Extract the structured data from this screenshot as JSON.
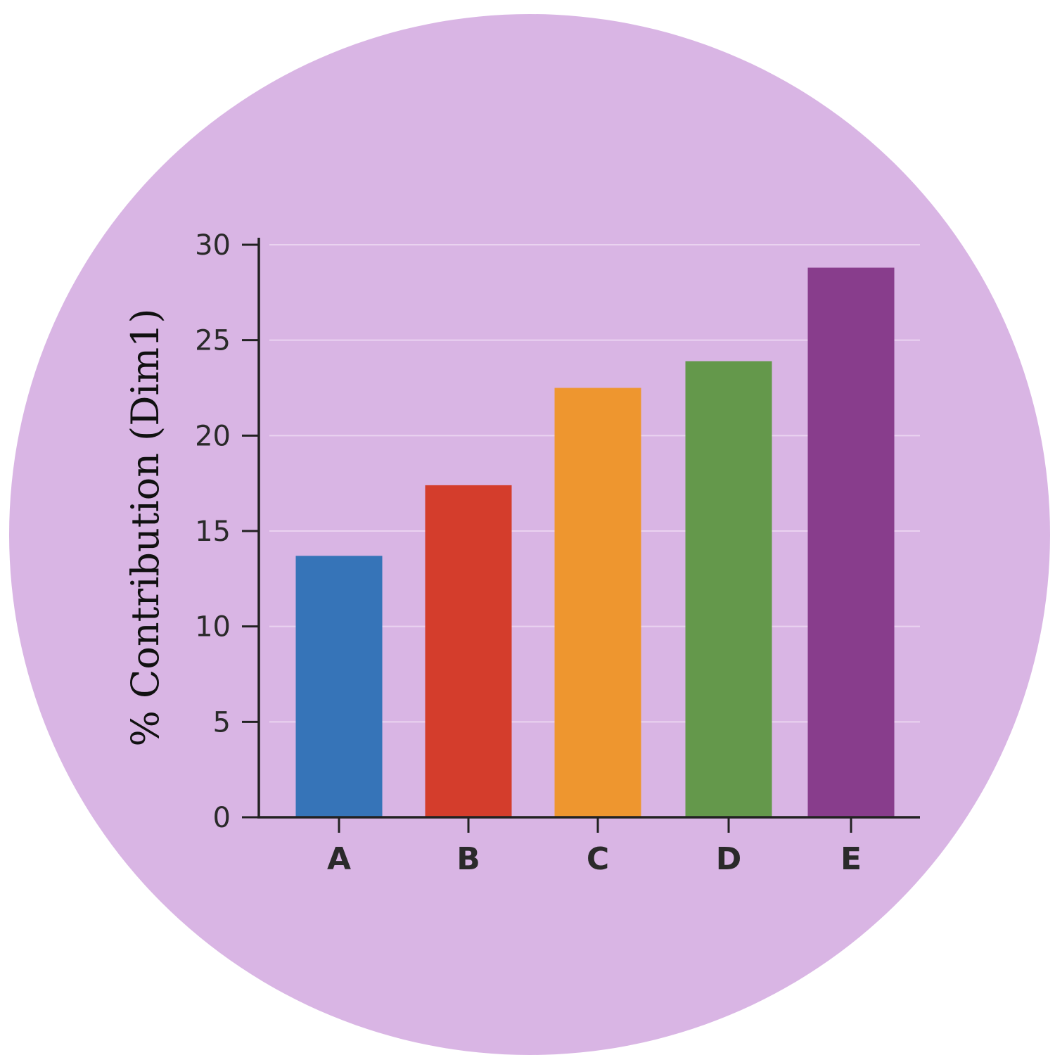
{
  "background_color": "#d9b5e4",
  "chart_data": {
    "type": "bar",
    "title": "",
    "xlabel": "",
    "ylabel": "% Contribution (Dim1)",
    "categories": [
      "A",
      "B",
      "C",
      "D",
      "E"
    ],
    "values": [
      13.7,
      17.4,
      22.5,
      23.9,
      28.8
    ],
    "colors": [
      "#3674b8",
      "#d43d2c",
      "#ee962f",
      "#64984b",
      "#883d8c"
    ],
    "ylim": [
      0,
      30
    ],
    "yticks": [
      "0",
      "5",
      "10",
      "15",
      "20",
      "25",
      "30"
    ],
    "grid": true,
    "legend": "none"
  }
}
